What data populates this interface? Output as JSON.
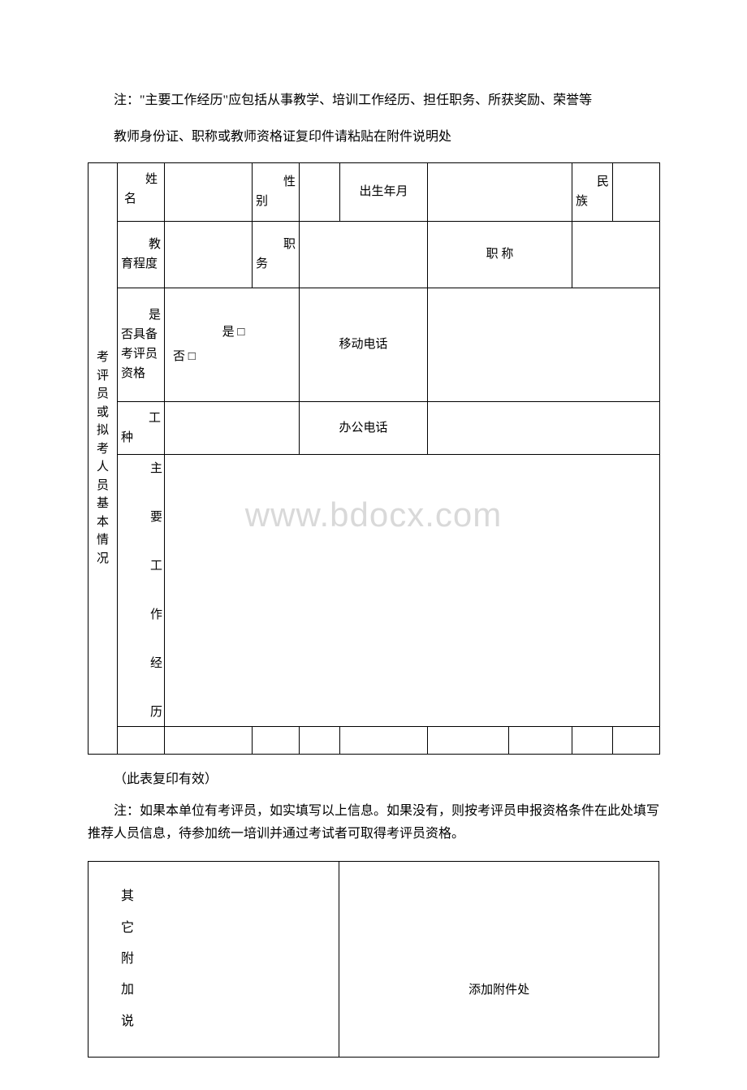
{
  "notes": {
    "note1": "注：\"主要工作经历\"应包括从事教学、培训工作经历、担任职务、所获奖励、荣誉等",
    "note2": "教师身份证、职称或教师资格证复印件请粘贴在附件说明处",
    "parenNote": "（此表复印有效）",
    "note3": "注：如果本单位有考评员，如实填写以上信息。如果没有，则按考评员申报资格条件在此处填写推荐人员信息，待参加统一培训并通过考试者可取得考评员资格。"
  },
  "table1": {
    "sideLabel": "考评员或拟考人员基本情况",
    "row1": {
      "col1_hdr": "姓",
      "col1_body": "名",
      "col2_hdr": "性",
      "col2_body": "别",
      "col3_full": "出生年月",
      "col4_hdr": "民",
      "col4_body": "族"
    },
    "row2": {
      "col1_hdr": "教",
      "col1_body": "育程度",
      "col2_hdr": "职",
      "col2_body": "务",
      "col3": "职 称"
    },
    "row3": {
      "col1_hdr": "是",
      "col1_body": "否具备考评员资格",
      "col2_yes": "是 □",
      "col2_no": "否 □",
      "col3": "移动电话"
    },
    "row4": {
      "col1_hdr": "工",
      "col1_body": "种",
      "col3": "办公电话"
    },
    "row5": {
      "label": "主要工作经历"
    }
  },
  "table2": {
    "leftLabel": "其它附加说",
    "rightLabel": "添加附件处"
  },
  "watermark": "www.bdocx.com",
  "colors": {
    "text": "#000000",
    "background": "#ffffff",
    "border": "#000000",
    "watermark": "#d9d9d9"
  }
}
